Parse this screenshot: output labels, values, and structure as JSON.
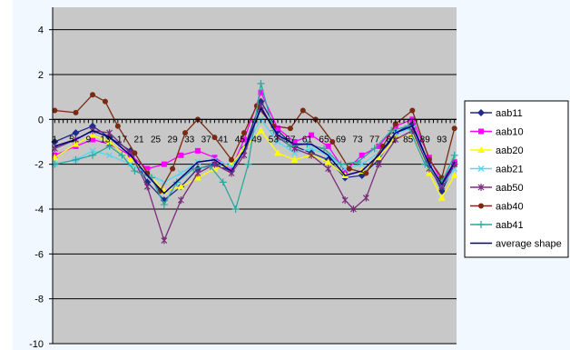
{
  "chart_data": {
    "type": "line",
    "title": "",
    "xlabel": "",
    "ylabel": "",
    "ylim": [
      -10,
      5
    ],
    "yticks": [
      4,
      2,
      0,
      -2,
      -4,
      -6,
      -8,
      -10
    ],
    "ytick_labels": [
      "4",
      "2",
      "0",
      "-2",
      "-4",
      "-6",
      "-8",
      "-10"
    ],
    "x_range": [
      1,
      96
    ],
    "xtick_values": [
      1,
      5,
      9,
      13,
      17,
      21,
      25,
      29,
      33,
      37,
      41,
      45,
      49,
      53,
      57,
      61,
      65,
      69,
      73,
      77,
      81,
      85,
      89,
      93
    ],
    "xtick_labels": [
      "1",
      "5",
      "9",
      "13",
      "17",
      "21",
      "25",
      "29",
      "33",
      "37",
      "41",
      "45",
      "49",
      "53",
      "57",
      "61",
      "65",
      "69",
      "73",
      "77",
      "81",
      "85",
      "89",
      "93"
    ],
    "grid": true,
    "legend_position": "right",
    "series": [
      {
        "name": "aab11",
        "color": "#1f2a8c",
        "marker": "diamond",
        "points": [
          [
            1,
            -1
          ],
          [
            6,
            -0.6
          ],
          [
            10,
            -0.3
          ],
          [
            14,
            -0.8
          ],
          [
            19,
            -1.4
          ],
          [
            23,
            -2.8
          ],
          [
            27,
            -3.6
          ],
          [
            31,
            -3
          ],
          [
            35,
            -2.2
          ],
          [
            39,
            -2
          ],
          [
            43,
            -2.3
          ],
          [
            46,
            -1.3
          ],
          [
            50,
            0.8
          ],
          [
            54,
            -0.5
          ],
          [
            58,
            -1.2
          ],
          [
            62,
            -1.5
          ],
          [
            66,
            -1.8
          ],
          [
            70,
            -2.6
          ],
          [
            74,
            -2.5
          ],
          [
            78,
            -1.8
          ],
          [
            82,
            -0.6
          ],
          [
            86,
            -0.2
          ],
          [
            90,
            -2
          ],
          [
            93,
            -3.2
          ],
          [
            96,
            -2
          ]
        ]
      },
      {
        "name": "aab10",
        "color": "#ff00ff",
        "marker": "square",
        "points": [
          [
            1,
            -1.6
          ],
          [
            6,
            -1.2
          ],
          [
            10,
            -0.9
          ],
          [
            14,
            -1.1
          ],
          [
            19,
            -1.6
          ],
          [
            23,
            -2.2
          ],
          [
            27,
            -2
          ],
          [
            31,
            -1.6
          ],
          [
            35,
            -1.4
          ],
          [
            39,
            -1.7
          ],
          [
            43,
            -2.2
          ],
          [
            46,
            -0.9
          ],
          [
            50,
            1.2
          ],
          [
            54,
            -0.4
          ],
          [
            58,
            -1
          ],
          [
            62,
            -0.7
          ],
          [
            66,
            -1.2
          ],
          [
            70,
            -2.3
          ],
          [
            74,
            -1.6
          ],
          [
            78,
            -1.2
          ],
          [
            82,
            -0.3
          ],
          [
            86,
            0
          ],
          [
            90,
            -1.7
          ],
          [
            93,
            -2.8
          ],
          [
            96,
            -1.9
          ]
        ]
      },
      {
        "name": "aab20",
        "color": "#ffff00",
        "marker": "triangle",
        "points": [
          [
            1,
            -1.7
          ],
          [
            6,
            -1.1
          ],
          [
            10,
            -0.7
          ],
          [
            14,
            -1
          ],
          [
            19,
            -1.8
          ],
          [
            23,
            -2.4
          ],
          [
            27,
            -3.2
          ],
          [
            31,
            -3
          ],
          [
            35,
            -2.6
          ],
          [
            39,
            -2.2
          ],
          [
            43,
            -2
          ],
          [
            46,
            -1.3
          ],
          [
            50,
            -0.5
          ],
          [
            54,
            -1.5
          ],
          [
            58,
            -1.8
          ],
          [
            62,
            -1.6
          ],
          [
            66,
            -1.9
          ],
          [
            70,
            -2.5
          ],
          [
            74,
            -2.3
          ],
          [
            78,
            -1.7
          ],
          [
            82,
            -0.8
          ],
          [
            86,
            -0.7
          ],
          [
            90,
            -2.4
          ],
          [
            93,
            -3.5
          ],
          [
            96,
            -2.5
          ]
        ]
      },
      {
        "name": "aab21",
        "color": "#55d6f2",
        "marker": "x",
        "points": [
          [
            1,
            -2
          ],
          [
            6,
            -1.8
          ],
          [
            10,
            -1.4
          ],
          [
            14,
            -1.6
          ],
          [
            19,
            -2
          ],
          [
            23,
            -2.4
          ],
          [
            27,
            -2.8
          ],
          [
            31,
            -2.4
          ],
          [
            35,
            -1.9
          ],
          [
            39,
            -1.8
          ],
          [
            43,
            -2.1
          ],
          [
            46,
            -1.4
          ],
          [
            50,
            0
          ],
          [
            54,
            -1
          ],
          [
            58,
            -1.5
          ],
          [
            62,
            -1.3
          ],
          [
            66,
            -1.6
          ],
          [
            70,
            -2.2
          ],
          [
            74,
            -2
          ],
          [
            78,
            -1.5
          ],
          [
            82,
            -0.6
          ],
          [
            86,
            -0.4
          ],
          [
            90,
            -2.1
          ],
          [
            93,
            -3
          ],
          [
            96,
            -2.2
          ]
        ]
      },
      {
        "name": "aab50",
        "color": "#7b2d7b",
        "marker": "star",
        "points": [
          [
            1,
            -1.3
          ],
          [
            6,
            -0.9
          ],
          [
            10,
            -0.5
          ],
          [
            14,
            -0.6
          ],
          [
            19,
            -1.5
          ],
          [
            23,
            -3
          ],
          [
            27,
            -5.4
          ],
          [
            31,
            -3.6
          ],
          [
            35,
            -2.4
          ],
          [
            39,
            -2
          ],
          [
            43,
            -2.4
          ],
          [
            46,
            -1.6
          ],
          [
            50,
            0.6
          ],
          [
            54,
            -0.8
          ],
          [
            58,
            -1.3
          ],
          [
            62,
            -1.6
          ],
          [
            66,
            -2.2
          ],
          [
            70,
            -3.6
          ],
          [
            72,
            -4
          ],
          [
            75,
            -3.5
          ],
          [
            78,
            -2
          ],
          [
            82,
            -0.9
          ],
          [
            86,
            -0.5
          ],
          [
            90,
            -2.2
          ],
          [
            93,
            -3
          ],
          [
            96,
            -2
          ]
        ]
      },
      {
        "name": "aab40",
        "color": "#7a2a12",
        "marker": "circle",
        "points": [
          [
            1,
            0.4
          ],
          [
            6,
            0.3
          ],
          [
            10,
            1.1
          ],
          [
            13,
            0.8
          ],
          [
            16,
            -0.3
          ],
          [
            20,
            -1.5
          ],
          [
            23,
            -2.4
          ],
          [
            26,
            -3.2
          ],
          [
            29,
            -2.2
          ],
          [
            32,
            -0.6
          ],
          [
            35,
            0
          ],
          [
            39,
            -0.8
          ],
          [
            43,
            -1.8
          ],
          [
            46,
            -0.6
          ],
          [
            49,
            0.6
          ],
          [
            53,
            -0.3
          ],
          [
            57,
            -0.4
          ],
          [
            60,
            0.4
          ],
          [
            63,
            0
          ],
          [
            67,
            -1
          ],
          [
            71,
            -2.2
          ],
          [
            75,
            -2.4
          ],
          [
            79,
            -1.2
          ],
          [
            82,
            -0.2
          ],
          [
            86,
            0.4
          ],
          [
            90,
            -1.8
          ],
          [
            93,
            -2.6
          ],
          [
            96,
            -0.4
          ]
        ]
      },
      {
        "name": "aab41",
        "color": "#2aa7a0",
        "marker": "plus",
        "points": [
          [
            1,
            -2
          ],
          [
            6,
            -1.8
          ],
          [
            10,
            -1.6
          ],
          [
            14,
            -1.2
          ],
          [
            17,
            -1.6
          ],
          [
            20,
            -2.3
          ],
          [
            24,
            -2.6
          ],
          [
            27,
            -3.8
          ],
          [
            30,
            -2.8
          ],
          [
            34,
            -2.2
          ],
          [
            38,
            -2.1
          ],
          [
            41,
            -2.8
          ],
          [
            44,
            -4
          ],
          [
            47,
            -2
          ],
          [
            50,
            1.6
          ],
          [
            53,
            -0.5
          ],
          [
            57,
            -1.2
          ],
          [
            61,
            -1.1
          ],
          [
            65,
            -1.3
          ],
          [
            69,
            -2
          ],
          [
            73,
            -1.9
          ],
          [
            77,
            -1.3
          ],
          [
            81,
            -0.5
          ],
          [
            85,
            -0.3
          ],
          [
            89,
            -2
          ],
          [
            93,
            -2.8
          ],
          [
            96,
            -1.6
          ]
        ]
      },
      {
        "name": "average shape",
        "color": "#000080",
        "marker": "none",
        "points": [
          [
            1,
            -1.2
          ],
          [
            6,
            -0.9
          ],
          [
            10,
            -0.5
          ],
          [
            14,
            -0.8
          ],
          [
            19,
            -1.6
          ],
          [
            23,
            -2.5
          ],
          [
            27,
            -3.3
          ],
          [
            31,
            -2.6
          ],
          [
            35,
            -1.9
          ],
          [
            39,
            -1.8
          ],
          [
            43,
            -2.3
          ],
          [
            46,
            -1.4
          ],
          [
            50,
            0.5
          ],
          [
            54,
            -0.7
          ],
          [
            58,
            -1.1
          ],
          [
            62,
            -1.1
          ],
          [
            66,
            -1.6
          ],
          [
            70,
            -2.5
          ],
          [
            74,
            -2.3
          ],
          [
            78,
            -1.6
          ],
          [
            82,
            -0.6
          ],
          [
            86,
            -0.3
          ],
          [
            90,
            -2
          ],
          [
            93,
            -2.9
          ],
          [
            96,
            -1.9
          ]
        ]
      }
    ]
  }
}
